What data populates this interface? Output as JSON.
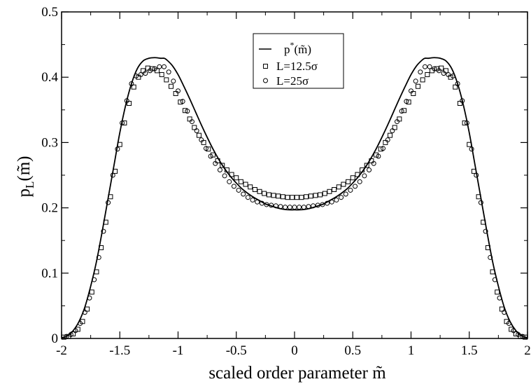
{
  "chart_data": {
    "type": "line",
    "title": "",
    "xlabel": "scaled order parameter m̃",
    "ylabel": "p",
    "ylabel_sub": "L",
    "ylabel_arg": "(m̃)",
    "xlim": [
      -2,
      2
    ],
    "ylim": [
      0,
      0.5
    ],
    "x_ticks": [
      "-2",
      "-1.5",
      "-1",
      "-0.5",
      "0",
      "0.5",
      "1",
      "1.5",
      "2"
    ],
    "y_ticks": [
      "0",
      "0.1",
      "0.2",
      "0.3",
      "0.4",
      "0.5"
    ],
    "grid": false,
    "legend_position": "top-center",
    "legend": {
      "curve_label_base": "p",
      "curve_label_sup": "*",
      "curve_label_arg": "(m̃)",
      "squares_label": "L=12.5σ",
      "circles_label": "L=25σ"
    },
    "series": [
      {
        "id": "pstar",
        "marker": "line",
        "x": [
          -2.0,
          -1.95,
          -1.9,
          -1.85,
          -1.8,
          -1.75,
          -1.7,
          -1.65,
          -1.6,
          -1.55,
          -1.5,
          -1.45,
          -1.4,
          -1.35,
          -1.3,
          -1.25,
          -1.2,
          -1.15,
          -1.12,
          -1.1,
          -1.05,
          -1.0,
          -0.95,
          -0.9,
          -0.85,
          -0.8,
          -0.75,
          -0.7,
          -0.65,
          -0.6,
          -0.55,
          -0.5,
          -0.45,
          -0.4,
          -0.35,
          -0.3,
          -0.25,
          -0.2,
          -0.15,
          -0.1,
          -0.05,
          0.0,
          0.05,
          0.1,
          0.15,
          0.2,
          0.25,
          0.3,
          0.35,
          0.4,
          0.45,
          0.5,
          0.55,
          0.6,
          0.65,
          0.7,
          0.75,
          0.8,
          0.85,
          0.9,
          0.95,
          1.0,
          1.05,
          1.1,
          1.12,
          1.15,
          1.2,
          1.25,
          1.3,
          1.35,
          1.4,
          1.45,
          1.5,
          1.55,
          1.6,
          1.65,
          1.7,
          1.75,
          1.8,
          1.85,
          1.9,
          1.95,
          2.0
        ],
        "y": [
          0.001,
          0.004,
          0.012,
          0.026,
          0.048,
          0.08,
          0.118,
          0.165,
          0.215,
          0.265,
          0.315,
          0.357,
          0.39,
          0.413,
          0.425,
          0.429,
          0.43,
          0.429,
          0.429,
          0.427,
          0.418,
          0.404,
          0.386,
          0.367,
          0.347,
          0.327,
          0.308,
          0.29,
          0.274,
          0.26,
          0.248,
          0.238,
          0.229,
          0.222,
          0.216,
          0.211,
          0.206,
          0.203,
          0.2,
          0.198,
          0.197,
          0.197,
          0.197,
          0.198,
          0.2,
          0.203,
          0.206,
          0.211,
          0.216,
          0.222,
          0.229,
          0.238,
          0.248,
          0.26,
          0.274,
          0.29,
          0.308,
          0.327,
          0.347,
          0.367,
          0.386,
          0.404,
          0.418,
          0.427,
          0.429,
          0.429,
          0.43,
          0.429,
          0.425,
          0.413,
          0.39,
          0.357,
          0.315,
          0.265,
          0.215,
          0.165,
          0.118,
          0.08,
          0.048,
          0.026,
          0.012,
          0.004,
          0.001
        ]
      },
      {
        "id": "l125",
        "marker": "square",
        "x": [
          -1.98,
          -1.94,
          -1.9,
          -1.86,
          -1.82,
          -1.78,
          -1.74,
          -1.7,
          -1.66,
          -1.62,
          -1.58,
          -1.54,
          -1.5,
          -1.46,
          -1.42,
          -1.38,
          -1.34,
          -1.3,
          -1.26,
          -1.22,
          -1.18,
          -1.14,
          -1.1,
          -1.06,
          -1.02,
          -0.98,
          -0.94,
          -0.9,
          -0.86,
          -0.82,
          -0.78,
          -0.74,
          -0.7,
          -0.66,
          -0.62,
          -0.58,
          -0.54,
          -0.5,
          -0.46,
          -0.42,
          -0.38,
          -0.34,
          -0.3,
          -0.26,
          -0.22,
          -0.18,
          -0.14,
          -0.1,
          -0.06,
          -0.02,
          0.02,
          0.06,
          0.1,
          0.14,
          0.18,
          0.22,
          0.26,
          0.3,
          0.34,
          0.38,
          0.42,
          0.46,
          0.5,
          0.54,
          0.58,
          0.62,
          0.66,
          0.7,
          0.74,
          0.78,
          0.82,
          0.86,
          0.9,
          0.94,
          0.98,
          1.02,
          1.06,
          1.1,
          1.14,
          1.18,
          1.22,
          1.26,
          1.3,
          1.34,
          1.38,
          1.42,
          1.46,
          1.5,
          1.54,
          1.58,
          1.62,
          1.66,
          1.7,
          1.74,
          1.78,
          1.82,
          1.86,
          1.9,
          1.94,
          1.98
        ],
        "y": [
          0.002,
          0.003,
          0.007,
          0.014,
          0.026,
          0.045,
          0.071,
          0.102,
          0.139,
          0.178,
          0.217,
          0.256,
          0.297,
          0.33,
          0.36,
          0.385,
          0.4,
          0.41,
          0.414,
          0.413,
          0.41,
          0.404,
          0.396,
          0.386,
          0.375,
          0.362,
          0.349,
          0.336,
          0.323,
          0.311,
          0.3,
          0.29,
          0.281,
          0.272,
          0.265,
          0.258,
          0.251,
          0.246,
          0.24,
          0.236,
          0.232,
          0.228,
          0.225,
          0.222,
          0.22,
          0.219,
          0.218,
          0.217,
          0.216,
          0.216,
          0.216,
          0.216,
          0.217,
          0.218,
          0.219,
          0.22,
          0.222,
          0.225,
          0.228,
          0.232,
          0.236,
          0.24,
          0.246,
          0.251,
          0.258,
          0.265,
          0.272,
          0.281,
          0.29,
          0.3,
          0.311,
          0.323,
          0.336,
          0.349,
          0.362,
          0.375,
          0.386,
          0.396,
          0.404,
          0.41,
          0.413,
          0.414,
          0.41,
          0.4,
          0.385,
          0.36,
          0.33,
          0.297,
          0.256,
          0.217,
          0.178,
          0.139,
          0.102,
          0.071,
          0.045,
          0.026,
          0.014,
          0.007,
          0.003,
          0.002
        ]
      },
      {
        "id": "l25",
        "marker": "circle",
        "x": [
          -1.96,
          -1.92,
          -1.88,
          -1.84,
          -1.8,
          -1.76,
          -1.72,
          -1.68,
          -1.64,
          -1.6,
          -1.56,
          -1.52,
          -1.48,
          -1.44,
          -1.4,
          -1.36,
          -1.32,
          -1.28,
          -1.24,
          -1.2,
          -1.16,
          -1.12,
          -1.08,
          -1.04,
          -1.0,
          -0.96,
          -0.92,
          -0.88,
          -0.84,
          -0.8,
          -0.76,
          -0.72,
          -0.68,
          -0.64,
          -0.6,
          -0.56,
          -0.52,
          -0.48,
          -0.44,
          -0.4,
          -0.36,
          -0.32,
          -0.28,
          -0.24,
          -0.2,
          -0.16,
          -0.12,
          -0.08,
          -0.04,
          0.0,
          0.04,
          0.08,
          0.12,
          0.16,
          0.2,
          0.24,
          0.28,
          0.32,
          0.36,
          0.4,
          0.44,
          0.48,
          0.52,
          0.56,
          0.6,
          0.64,
          0.68,
          0.72,
          0.76,
          0.8,
          0.84,
          0.88,
          0.92,
          0.96,
          1.0,
          1.04,
          1.08,
          1.12,
          1.16,
          1.2,
          1.24,
          1.28,
          1.32,
          1.36,
          1.4,
          1.44,
          1.48,
          1.52,
          1.56,
          1.6,
          1.64,
          1.68,
          1.72,
          1.76,
          1.8,
          1.84,
          1.88,
          1.92,
          1.96
        ],
        "y": [
          0.003,
          0.006,
          0.012,
          0.023,
          0.04,
          0.062,
          0.09,
          0.124,
          0.164,
          0.208,
          0.25,
          0.29,
          0.33,
          0.364,
          0.39,
          0.402,
          0.404,
          0.406,
          0.41,
          0.413,
          0.416,
          0.416,
          0.408,
          0.394,
          0.379,
          0.363,
          0.348,
          0.332,
          0.318,
          0.304,
          0.291,
          0.279,
          0.268,
          0.258,
          0.249,
          0.24,
          0.233,
          0.227,
          0.221,
          0.216,
          0.212,
          0.209,
          0.207,
          0.205,
          0.204,
          0.203,
          0.202,
          0.201,
          0.201,
          0.201,
          0.201,
          0.201,
          0.202,
          0.203,
          0.204,
          0.205,
          0.207,
          0.209,
          0.212,
          0.216,
          0.221,
          0.227,
          0.233,
          0.24,
          0.249,
          0.258,
          0.268,
          0.279,
          0.291,
          0.304,
          0.318,
          0.332,
          0.348,
          0.363,
          0.379,
          0.394,
          0.408,
          0.416,
          0.416,
          0.413,
          0.41,
          0.406,
          0.404,
          0.402,
          0.39,
          0.364,
          0.33,
          0.29,
          0.25,
          0.208,
          0.164,
          0.124,
          0.09,
          0.062,
          0.04,
          0.023,
          0.012,
          0.006,
          0.003
        ]
      }
    ]
  }
}
